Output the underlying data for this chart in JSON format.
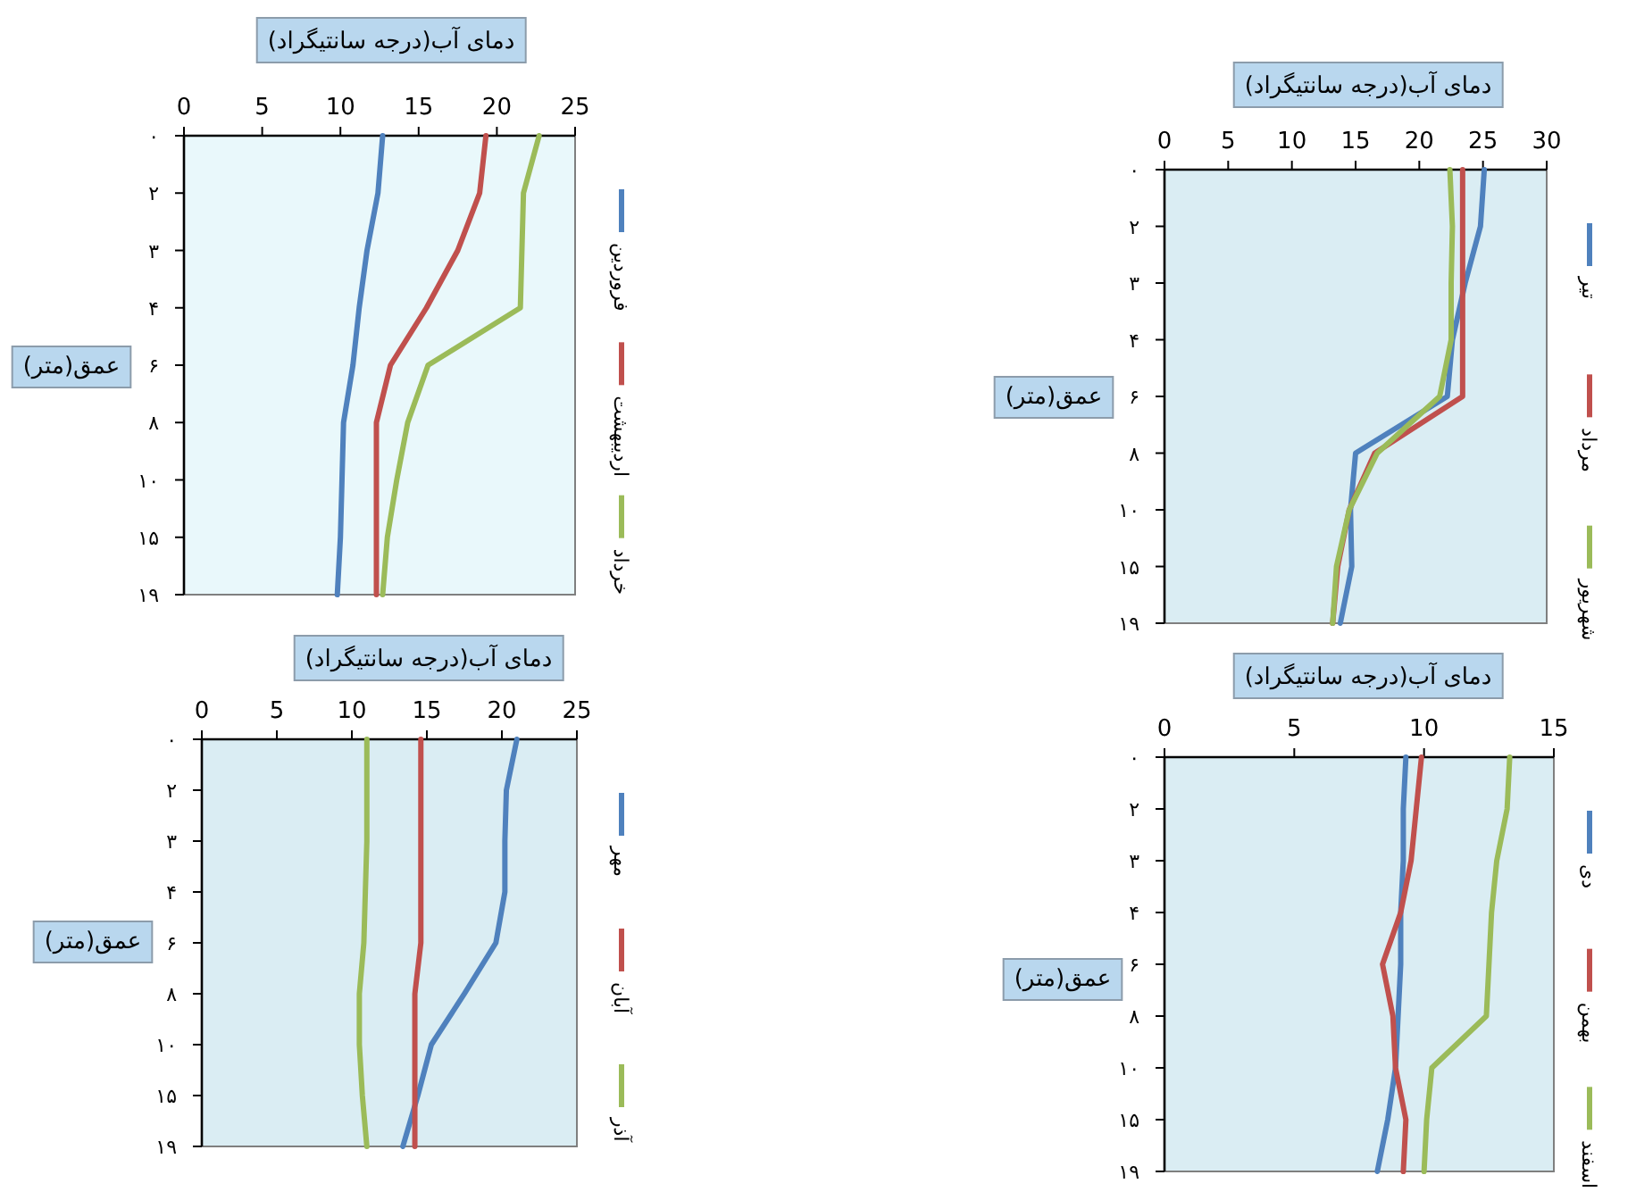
{
  "chart_data": [
    {
      "type": "line",
      "orientation": "horizontal",
      "xlabel": "دمای آب(درجه سانتیگراد)",
      "ylabel": "عمق(متر)",
      "categories": [
        "۰",
        "۲",
        "۳",
        "۴",
        "۶",
        "۸",
        "۱۰",
        "۱۵",
        "۱۹"
      ],
      "xlim": [
        0,
        25
      ],
      "xticks": [
        0,
        5,
        10,
        15,
        20,
        25
      ],
      "grid": false,
      "legend": "right",
      "series": [
        {
          "name": "فروردین",
          "color": "#4f81bd",
          "values": [
            12.7,
            12.4,
            11.7,
            11.2,
            10.8,
            10.2,
            10.1,
            10.0,
            9.8
          ]
        },
        {
          "name": "اردیبهشت",
          "color": "#c0504d",
          "values": [
            19.3,
            18.9,
            17.5,
            15.5,
            13.2,
            12.3,
            12.3,
            12.3,
            12.3
          ]
        },
        {
          "name": "خرداد",
          "color": "#9bbb59",
          "values": [
            22.7,
            21.7,
            21.6,
            21.5,
            15.6,
            14.3,
            13.6,
            13.0,
            12.7
          ]
        }
      ]
    },
    {
      "type": "line",
      "orientation": "horizontal",
      "xlabel": "دمای آب(درجه سانتیگراد)",
      "ylabel": "عمق(متر)",
      "categories": [
        "۰",
        "۲",
        "۳",
        "۴",
        "۶",
        "۸",
        "۱۰",
        "۱۵",
        "۱۹"
      ],
      "xlim": [
        0,
        30
      ],
      "xticks": [
        0,
        5,
        10,
        15,
        20,
        25,
        30
      ],
      "grid": false,
      "legend": "right",
      "series": [
        {
          "name": "تیر",
          "color": "#4f81bd",
          "values": [
            25.1,
            24.8,
            23.6,
            22.6,
            22.2,
            15.0,
            14.6,
            14.7,
            13.8
          ]
        },
        {
          "name": "مرداد",
          "color": "#c0504d",
          "values": [
            23.4,
            23.4,
            23.4,
            23.4,
            23.4,
            16.5,
            14.5,
            13.6,
            13.2
          ]
        },
        {
          "name": "شهریور",
          "color": "#9bbb59",
          "values": [
            22.4,
            22.6,
            22.5,
            22.5,
            21.6,
            16.7,
            14.5,
            13.5,
            13.2
          ]
        }
      ]
    },
    {
      "type": "line",
      "orientation": "horizontal",
      "xlabel": "دمای آب(درجه سانتیگراد)",
      "ylabel": "عمق(متر)",
      "categories": [
        "۰",
        "۲",
        "۳",
        "۴",
        "۶",
        "۸",
        "۱۰",
        "۱۵",
        "۱۹"
      ],
      "xlim": [
        0,
        25
      ],
      "xticks": [
        0,
        5,
        10,
        15,
        20,
        25
      ],
      "grid": false,
      "legend": "right",
      "series": [
        {
          "name": "مهر",
          "color": "#4f81bd",
          "values": [
            21.0,
            20.3,
            20.2,
            20.2,
            19.6,
            17.5,
            15.3,
            14.4,
            13.4
          ]
        },
        {
          "name": "آبان",
          "color": "#c0504d",
          "values": [
            14.6,
            14.6,
            14.6,
            14.6,
            14.6,
            14.2,
            14.2,
            14.2,
            14.2
          ]
        },
        {
          "name": "آذر",
          "color": "#9bbb59",
          "values": [
            11.0,
            11.0,
            11.0,
            10.9,
            10.8,
            10.5,
            10.5,
            10.7,
            11.0
          ]
        }
      ]
    },
    {
      "type": "line",
      "orientation": "horizontal",
      "xlabel": "دمای آب(درجه سانتیگراد)",
      "ylabel": "عمق(متر)",
      "categories": [
        "۰",
        "۲",
        "۳",
        "۴",
        "۶",
        "۸",
        "۱۰",
        "۱۵",
        "۱۹"
      ],
      "xlim": [
        0,
        15
      ],
      "xticks": [
        0,
        5,
        10,
        15
      ],
      "grid": false,
      "legend": "right",
      "series": [
        {
          "name": "دی",
          "color": "#4f81bd",
          "values": [
            9.3,
            9.2,
            9.2,
            9.1,
            9.1,
            9.0,
            8.9,
            8.6,
            8.2
          ]
        },
        {
          "name": "بهمن",
          "color": "#c0504d",
          "values": [
            9.9,
            9.7,
            9.5,
            9.1,
            8.4,
            8.8,
            8.9,
            9.3,
            9.2
          ]
        },
        {
          "name": "اسفند",
          "color": "#9bbb59",
          "values": [
            13.3,
            13.2,
            12.8,
            12.6,
            12.5,
            12.4,
            10.3,
            10.1,
            10.0
          ]
        }
      ]
    }
  ]
}
